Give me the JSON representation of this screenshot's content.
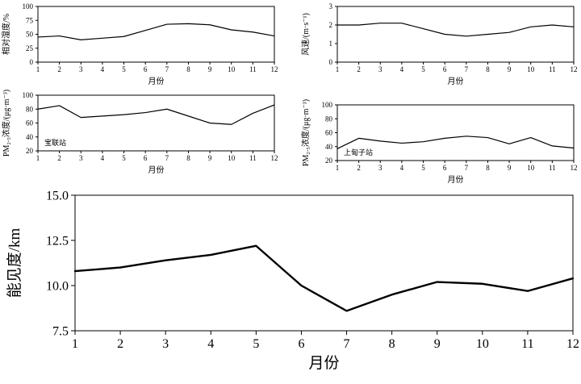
{
  "figure": {
    "background": "#ffffff",
    "line_color": "#000000"
  },
  "chart_data": [
    {
      "id": "relative-humidity",
      "type": "line",
      "title": "",
      "ylabel": "相对湿度/%",
      "xlabel": "月份",
      "x": [
        1,
        2,
        3,
        4,
        5,
        6,
        7,
        8,
        9,
        10,
        11,
        12
      ],
      "xtick_labels": [
        "1",
        "2",
        "3",
        "4",
        "5",
        "6",
        "7",
        "8",
        "9",
        "10",
        "11",
        "12"
      ],
      "values": [
        45,
        47,
        40,
        43,
        46,
        57,
        68,
        69,
        67,
        58,
        54,
        47
      ],
      "ylim": [
        0,
        100
      ],
      "yticks": [
        0,
        25,
        50,
        75,
        100
      ],
      "ytick_labels": [
        "0",
        "25",
        "50",
        "75",
        "100"
      ],
      "grid": false,
      "annotation": ""
    },
    {
      "id": "wind-speed",
      "type": "line",
      "title": "",
      "ylabel": "风速/(m·s⁻¹)",
      "xlabel": "月份",
      "x": [
        1,
        2,
        3,
        4,
        5,
        6,
        7,
        8,
        9,
        10,
        11,
        12
      ],
      "xtick_labels": [
        "1",
        "2",
        "3",
        "4",
        "5",
        "6",
        "7",
        "8",
        "9",
        "10",
        "11",
        "12"
      ],
      "values": [
        2.0,
        2.0,
        2.1,
        2.1,
        1.8,
        1.5,
        1.4,
        1.5,
        1.6,
        1.9,
        2.0,
        1.9
      ],
      "ylim": [
        0,
        3
      ],
      "yticks": [
        0,
        1,
        2,
        3
      ],
      "ytick_labels": [
        "0",
        "1",
        "2",
        "3"
      ],
      "grid": false,
      "annotation": ""
    },
    {
      "id": "pm25-baolian",
      "type": "line",
      "title": "",
      "ylabel": "PM₂.₅浓度/(μg·m⁻³)",
      "xlabel": "月份",
      "x": [
        1,
        2,
        3,
        4,
        5,
        6,
        7,
        8,
        9,
        10,
        11,
        12
      ],
      "xtick_labels": [
        "1",
        "2",
        "3",
        "4",
        "5",
        "6",
        "7",
        "8",
        "9",
        "10",
        "11",
        "12"
      ],
      "values": [
        80,
        85,
        68,
        70,
        72,
        75,
        80,
        70,
        60,
        58,
        74,
        86
      ],
      "ylim": [
        20,
        100
      ],
      "yticks": [
        20,
        40,
        60,
        80,
        100
      ],
      "ytick_labels": [
        "20",
        "40",
        "60",
        "80",
        "100"
      ],
      "grid": false,
      "annotation": "宝联站"
    },
    {
      "id": "pm25-shangdianzi",
      "type": "line",
      "title": "",
      "ylabel": "PM₂.₅浓度/(μg·m⁻³)",
      "xlabel": "月份",
      "x": [
        1,
        2,
        3,
        4,
        5,
        6,
        7,
        8,
        9,
        10,
        11,
        12
      ],
      "xtick_labels": [
        "1",
        "2",
        "3",
        "4",
        "5",
        "6",
        "7",
        "8",
        "9",
        "10",
        "11",
        "12"
      ],
      "values": [
        37,
        52,
        48,
        45,
        47,
        52,
        55,
        53,
        44,
        53,
        41,
        38
      ],
      "ylim": [
        20,
        100
      ],
      "yticks": [
        20,
        40,
        60,
        80,
        100
      ],
      "ytick_labels": [
        "20",
        "40",
        "60",
        "80",
        "100"
      ],
      "grid": false,
      "annotation": "上甸子站"
    },
    {
      "id": "visibility",
      "type": "line",
      "title": "",
      "ylabel": "能见度/km",
      "xlabel": "月份",
      "x": [
        1,
        2,
        3,
        4,
        5,
        6,
        7,
        8,
        9,
        10,
        11,
        12
      ],
      "xtick_labels": [
        "1",
        "2",
        "3",
        "4",
        "5",
        "6",
        "7",
        "8",
        "9",
        "10",
        "11",
        "12"
      ],
      "values": [
        10.8,
        11.0,
        11.4,
        11.7,
        12.2,
        10.0,
        8.6,
        9.5,
        10.2,
        10.1,
        9.7,
        10.4
      ],
      "ylim": [
        7.5,
        15.0
      ],
      "yticks": [
        7.5,
        10.0,
        12.5,
        15.0
      ],
      "ytick_labels": [
        "7.5",
        "10.0",
        "12.5",
        "15.0"
      ],
      "grid": false,
      "annotation": ""
    }
  ]
}
